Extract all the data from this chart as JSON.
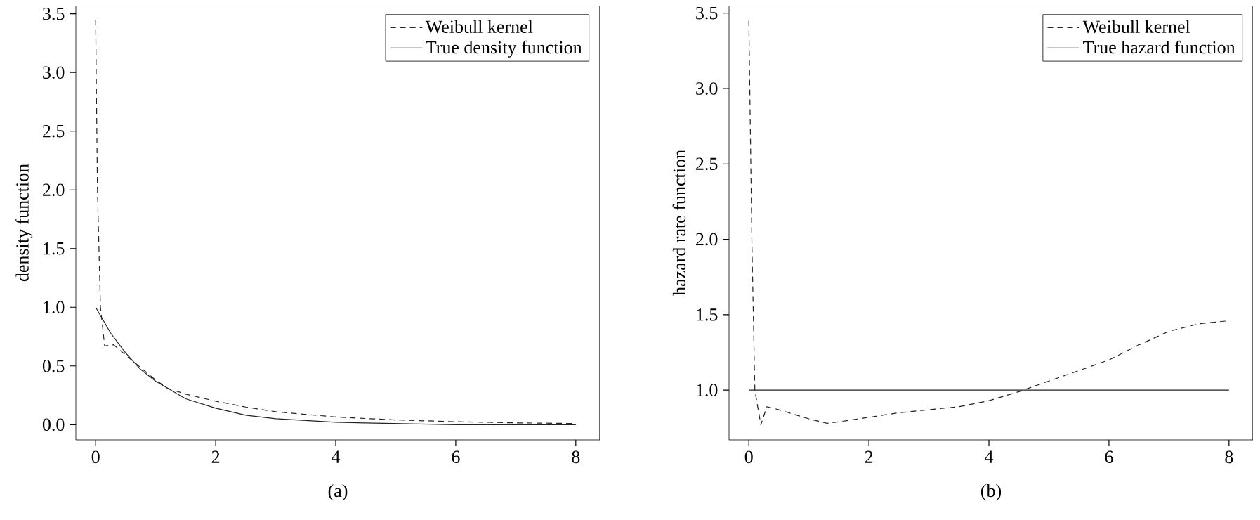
{
  "chart_data": [
    {
      "type": "line",
      "xlabel": "(a)",
      "ylabel": "density function",
      "xlim": [
        -0.33,
        8.4
      ],
      "ylim": [
        -0.13,
        3.57
      ],
      "xticks": [
        0,
        2,
        4,
        6,
        8
      ],
      "yticks": [
        {
          "value": 0,
          "label": "0.0"
        },
        {
          "value": 0.5,
          "label": "0.5"
        },
        {
          "value": 1,
          "label": "1.0"
        },
        {
          "value": 1.5,
          "label": "1.5"
        },
        {
          "value": 2,
          "label": "2.0"
        },
        {
          "value": 2.5,
          "label": "2.5"
        },
        {
          "value": 3,
          "label": "3.0"
        },
        {
          "value": 3.5,
          "label": "3.5"
        }
      ],
      "legend": "top right",
      "grid": false,
      "series": [
        {
          "name": "Weibull kernel",
          "color": "#222222",
          "line_style": "dashed",
          "x": [
            0.0,
            0.03,
            0.08,
            0.15,
            0.3,
            0.6,
            1.0,
            1.2,
            1.5,
            2.0,
            2.5,
            3.0,
            4.0,
            5.0,
            6.0,
            7.0,
            8.0
          ],
          "values": [
            3.45,
            2.0,
            1.0,
            0.67,
            0.68,
            0.55,
            0.38,
            0.31,
            0.26,
            0.2,
            0.15,
            0.11,
            0.065,
            0.04,
            0.025,
            0.015,
            0.01
          ]
        },
        {
          "name": "True density function",
          "color": "#222222",
          "line_style": "solid",
          "x": [
            0.0,
            0.25,
            0.5,
            0.75,
            1.0,
            1.5,
            2.0,
            2.5,
            3.0,
            4.0,
            5.0,
            6.0,
            7.0,
            8.0
          ],
          "values": [
            1.0,
            0.78,
            0.61,
            0.47,
            0.37,
            0.22,
            0.14,
            0.08,
            0.05,
            0.02,
            0.01,
            0.0,
            0.0,
            0.0
          ]
        }
      ]
    },
    {
      "type": "line",
      "xlabel": "(b)",
      "ylabel": "hazard rate function",
      "xlim": [
        -0.33,
        8.4
      ],
      "ylim": [
        0.67,
        3.55
      ],
      "xticks": [
        0,
        2,
        4,
        6,
        8
      ],
      "yticks": [
        {
          "value": 1,
          "label": "1.0"
        },
        {
          "value": 1.5,
          "label": "1.5"
        },
        {
          "value": 2,
          "label": "2.0"
        },
        {
          "value": 2.5,
          "label": "2.5"
        },
        {
          "value": 3,
          "label": "3.0"
        },
        {
          "value": 3.5,
          "label": "3.5"
        }
      ],
      "legend": "top right",
      "grid": false,
      "series": [
        {
          "name": "Weibull kernel",
          "color": "#222222",
          "line_style": "dashed",
          "x": [
            0.0,
            0.05,
            0.1,
            0.2,
            0.3,
            0.5,
            1.0,
            1.3,
            1.5,
            2.0,
            2.5,
            3.0,
            3.5,
            4.0,
            4.5,
            5.0,
            5.5,
            6.0,
            6.5,
            7.0,
            7.5,
            8.0
          ],
          "values": [
            3.45,
            2.0,
            1.0,
            0.77,
            0.89,
            0.87,
            0.81,
            0.78,
            0.79,
            0.82,
            0.85,
            0.87,
            0.89,
            0.93,
            0.99,
            1.06,
            1.13,
            1.2,
            1.3,
            1.39,
            1.44,
            1.46
          ]
        },
        {
          "name": "True hazard function",
          "color": "#222222",
          "line_style": "solid",
          "x": [
            0,
            8
          ],
          "values": [
            1,
            1
          ]
        }
      ]
    }
  ]
}
